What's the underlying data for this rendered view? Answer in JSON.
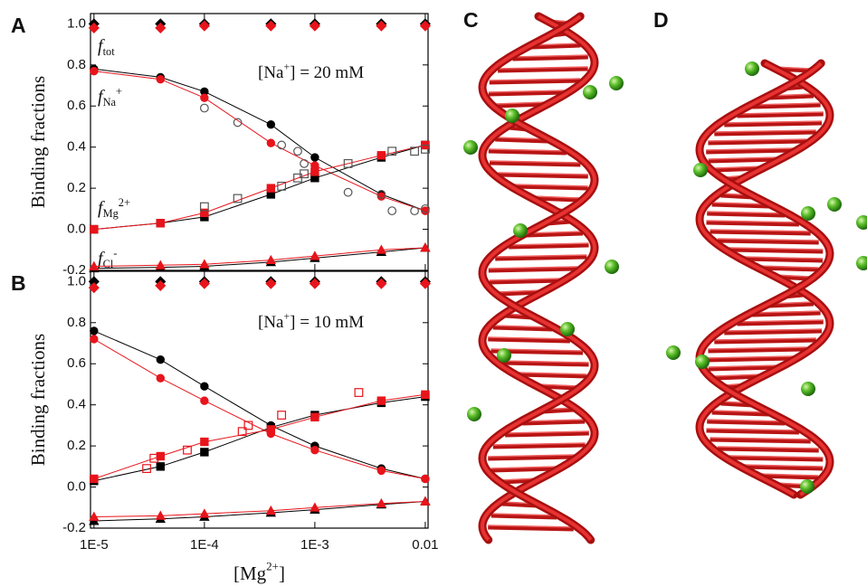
{
  "chart_data": [
    {
      "type": "line",
      "panel_label": "A",
      "ylabel": "Binding fractions",
      "log_x": true,
      "x": [
        1e-05,
        4e-05,
        0.0001,
        0.0004,
        0.001,
        0.004,
        0.01
      ],
      "xlim": [
        9.3e-06,
        0.0106
      ],
      "xticks": [
        1e-05,
        0.0001,
        0.001,
        0.01
      ],
      "ylim": [
        -0.2,
        1.05
      ],
      "yticks": [
        -0.2,
        {
          "value": 0,
          "label": "0.0"
        },
        0.2,
        0.4,
        0.6,
        0.8,
        {
          "value": 1,
          "label": "1.0"
        }
      ],
      "annotations": [
        {
          "text": "f",
          "sub": "tot"
        },
        {
          "text": "f",
          "sub": "Na",
          "sup": "+"
        },
        {
          "text": "f",
          "sub": "Mg",
          "sup": "2+"
        },
        {
          "text": "f",
          "sub": "Cl",
          "sup": "-"
        },
        {
          "text": "[Na",
          "sup": "+",
          "after": "] = 20 mM"
        }
      ],
      "series": [
        {
          "color": "#000000",
          "marker": "diamond",
          "filled": true,
          "line": false,
          "values": [
            1,
            1,
            1,
            1,
            1,
            1,
            1
          ]
        },
        {
          "color": "#e8141b",
          "marker": "diamond",
          "filled": true,
          "line": false,
          "values": [
            0.98,
            0.98,
            0.99,
            0.99,
            0.99,
            0.99,
            0.99
          ]
        },
        {
          "color": "#000000",
          "marker": "circle",
          "filled": true,
          "line": true,
          "values": [
            0.78,
            0.74,
            0.67,
            0.51,
            0.35,
            0.17,
            0.09
          ]
        },
        {
          "color": "#e8141b",
          "marker": "circle",
          "filled": true,
          "line": true,
          "values": [
            0.77,
            0.73,
            0.64,
            0.42,
            0.31,
            0.16,
            0.09
          ]
        },
        {
          "color": "#000000",
          "marker": "square",
          "filled": true,
          "line": true,
          "values": [
            0.0,
            0.03,
            0.06,
            0.17,
            0.25,
            0.35,
            0.41
          ]
        },
        {
          "color": "#e8141b",
          "marker": "square",
          "filled": true,
          "line": true,
          "values": [
            0.0,
            0.03,
            0.08,
            0.2,
            0.28,
            0.36,
            0.41
          ]
        },
        {
          "color": "#000000",
          "marker": "triangle",
          "filled": true,
          "line": true,
          "values": [
            -0.19,
            -0.185,
            -0.18,
            -0.16,
            -0.14,
            -0.11,
            -0.09
          ]
        },
        {
          "color": "#e8141b",
          "marker": "triangle",
          "filled": true,
          "line": true,
          "values": [
            -0.18,
            -0.175,
            -0.17,
            -0.15,
            -0.13,
            -0.1,
            -0.09
          ]
        },
        {
          "color": "#555555",
          "marker": "circle",
          "filled": false,
          "line": false,
          "x": [
            0.0001,
            0.0002,
            0.0005,
            0.0007,
            0.0008,
            0.002,
            0.004,
            0.005,
            0.008,
            0.01
          ],
          "values": [
            0.59,
            0.52,
            0.41,
            0.38,
            0.32,
            0.18,
            0.17,
            0.09,
            0.09,
            0.1
          ]
        },
        {
          "color": "#555555",
          "marker": "square",
          "filled": false,
          "line": false,
          "x": [
            0.0001,
            0.0002,
            0.0005,
            0.0007,
            0.0008,
            0.002,
            0.005,
            0.008,
            0.01
          ],
          "values": [
            0.11,
            0.15,
            0.21,
            0.25,
            0.27,
            0.32,
            0.38,
            0.38,
            0.39
          ]
        }
      ]
    },
    {
      "type": "line",
      "panel_label": "B",
      "ylabel": "Binding fractions",
      "log_x": true,
      "xlabel": {
        "text": "[Mg",
        "sup": "2+",
        "after": "]"
      },
      "x": [
        1e-05,
        4e-05,
        0.0001,
        0.0004,
        0.001,
        0.004,
        0.01
      ],
      "xlim": [
        9.3e-06,
        0.0106
      ],
      "xticks": [
        {
          "value": 1e-05,
          "label": "1E-5"
        },
        {
          "value": 0.0001,
          "label": "1E-4"
        },
        {
          "value": 0.001,
          "label": "1E-3"
        },
        0.01
      ],
      "ylim": [
        -0.2,
        1.05
      ],
      "yticks": [
        -0.2,
        {
          "value": 0,
          "label": "0.0"
        },
        0.2,
        0.4,
        0.6,
        0.8,
        {
          "value": 1,
          "label": "1.0"
        }
      ],
      "annotations": [
        {
          "text": "[Na",
          "sup": "+",
          "after": "] = 10 mM"
        }
      ],
      "series": [
        {
          "color": "#000000",
          "marker": "diamond",
          "filled": true,
          "line": false,
          "values": [
            1,
            1,
            1,
            1,
            1,
            1,
            1
          ]
        },
        {
          "color": "#e8141b",
          "marker": "diamond",
          "filled": true,
          "line": false,
          "values": [
            0.97,
            0.98,
            0.99,
            0.99,
            0.99,
            0.99,
            0.99
          ]
        },
        {
          "color": "#000000",
          "marker": "circle",
          "filled": true,
          "line": true,
          "values": [
            0.76,
            0.62,
            0.49,
            0.3,
            0.2,
            0.09,
            0.04
          ]
        },
        {
          "color": "#e8141b",
          "marker": "circle",
          "filled": true,
          "line": true,
          "values": [
            0.72,
            0.53,
            0.42,
            0.26,
            0.18,
            0.08,
            0.04
          ]
        },
        {
          "color": "#000000",
          "marker": "square",
          "filled": true,
          "line": true,
          "values": [
            0.03,
            0.1,
            0.17,
            0.29,
            0.35,
            0.41,
            0.44
          ]
        },
        {
          "color": "#e8141b",
          "marker": "square",
          "filled": true,
          "line": true,
          "values": [
            0.04,
            0.15,
            0.22,
            0.28,
            0.34,
            0.42,
            0.45
          ]
        },
        {
          "color": "#000000",
          "marker": "triangle",
          "filled": true,
          "line": true,
          "values": [
            -0.165,
            -0.155,
            -0.145,
            -0.125,
            -0.11,
            -0.085,
            -0.07
          ]
        },
        {
          "color": "#e8141b",
          "marker": "triangle",
          "filled": true,
          "line": true,
          "values": [
            -0.145,
            -0.14,
            -0.13,
            -0.115,
            -0.1,
            -0.08,
            -0.07
          ]
        },
        {
          "color": "#e8141b",
          "marker": "square",
          "filled": false,
          "line": false,
          "x": [
            3e-05,
            3.5e-05,
            7e-05,
            0.00022,
            0.00025,
            0.0005,
            0.0025
          ],
          "values": [
            0.09,
            0.14,
            0.18,
            0.27,
            0.3,
            0.35,
            0.46
          ]
        }
      ]
    }
  ],
  "images": [
    {
      "label": "C"
    },
    {
      "label": "D"
    }
  ]
}
